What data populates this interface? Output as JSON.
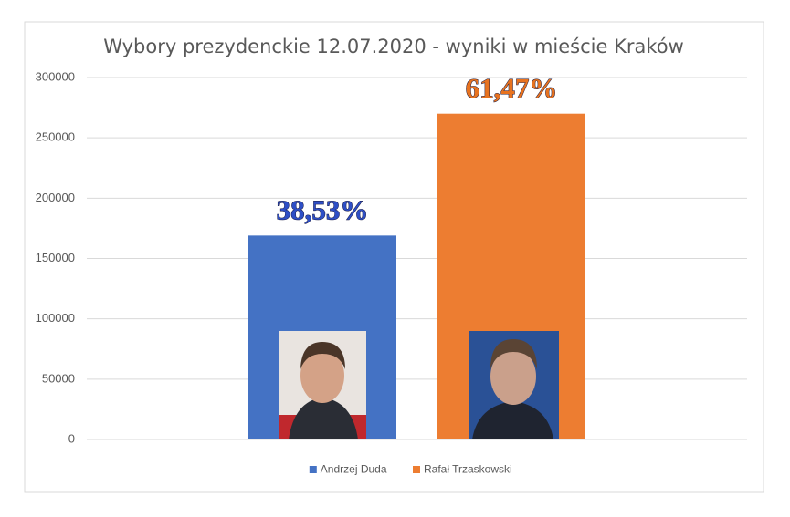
{
  "chart_data": {
    "type": "bar",
    "title": "Wybory prezydenckie 12.07.2020 - wyniki w mieście Kraków",
    "categories": [
      null
    ],
    "series": [
      {
        "name": "Andrzej Duda",
        "color": "#4472c4",
        "values": [
          169000
        ]
      },
      {
        "name": "Rafał Trzaskowski",
        "color": "#ed7d31",
        "values": [
          270000
        ]
      }
    ],
    "annotations": [
      "38,53%",
      "61,47%"
    ],
    "annotation_colors": [
      "#2e4fc6",
      "#e8731f"
    ],
    "ylim": [
      0,
      300000
    ],
    "yticks": [
      0,
      50000,
      100000,
      150000,
      200000,
      250000,
      300000
    ],
    "grid": true,
    "legend": "bottom"
  }
}
